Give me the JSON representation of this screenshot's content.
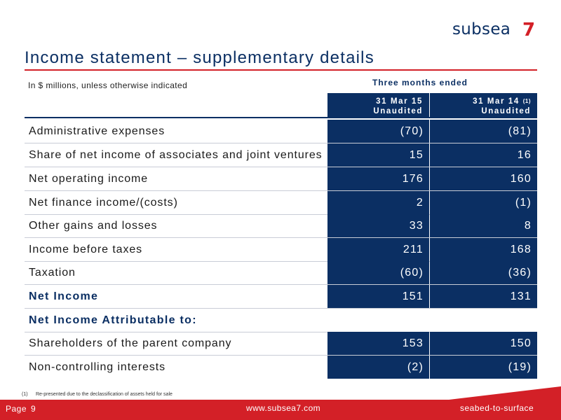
{
  "brand": {
    "wordmark": "subsea",
    "digit": "7"
  },
  "title": "Income statement – supplementary details",
  "unit_note": "In $ millions, unless otherwise indicated",
  "period_heading": "Three months ended",
  "columns": [
    {
      "date": "31 Mar 15",
      "note": "",
      "status": "Unaudited"
    },
    {
      "date": "31 Mar 14 ",
      "note": "(1)",
      "status": "Unaudited"
    }
  ],
  "rows": [
    {
      "label": "Administrative expenses",
      "v1": "(70)",
      "v2": "(81)"
    },
    {
      "label": "Share of net income of associates and joint ventures",
      "v1": "15",
      "v2": "16"
    },
    {
      "label": "Net operating income",
      "v1": "176",
      "v2": "160"
    },
    {
      "label": "Net finance income/(costs)",
      "v1": "2",
      "v2": "(1)"
    },
    {
      "label": "Other gains and losses",
      "v1": "33",
      "v2": "8"
    },
    {
      "label": "Income before taxes",
      "v1": "211",
      "v2": "168"
    },
    {
      "label": "Taxation",
      "v1": "(60)",
      "v2": "(36)"
    },
    {
      "label": "Net Income",
      "v1": "151",
      "v2": "131"
    },
    {
      "label": "Net Income Attributable to:"
    },
    {
      "label": "Shareholders of the parent company",
      "v1": "153",
      "v2": "150"
    },
    {
      "label": "Non-controlling interests",
      "v1": "(2)",
      "v2": "(19)"
    }
  ],
  "footnote": {
    "num": "(1)",
    "text": "Re-presented due to the declassification of assets held for sale"
  },
  "footer": {
    "page_label": "Page",
    "page_number": "9",
    "website": "www.subsea7.com",
    "tagline": "seabed-to-surface"
  },
  "colors": {
    "navy": "#0b2f63",
    "red": "#d32027"
  }
}
